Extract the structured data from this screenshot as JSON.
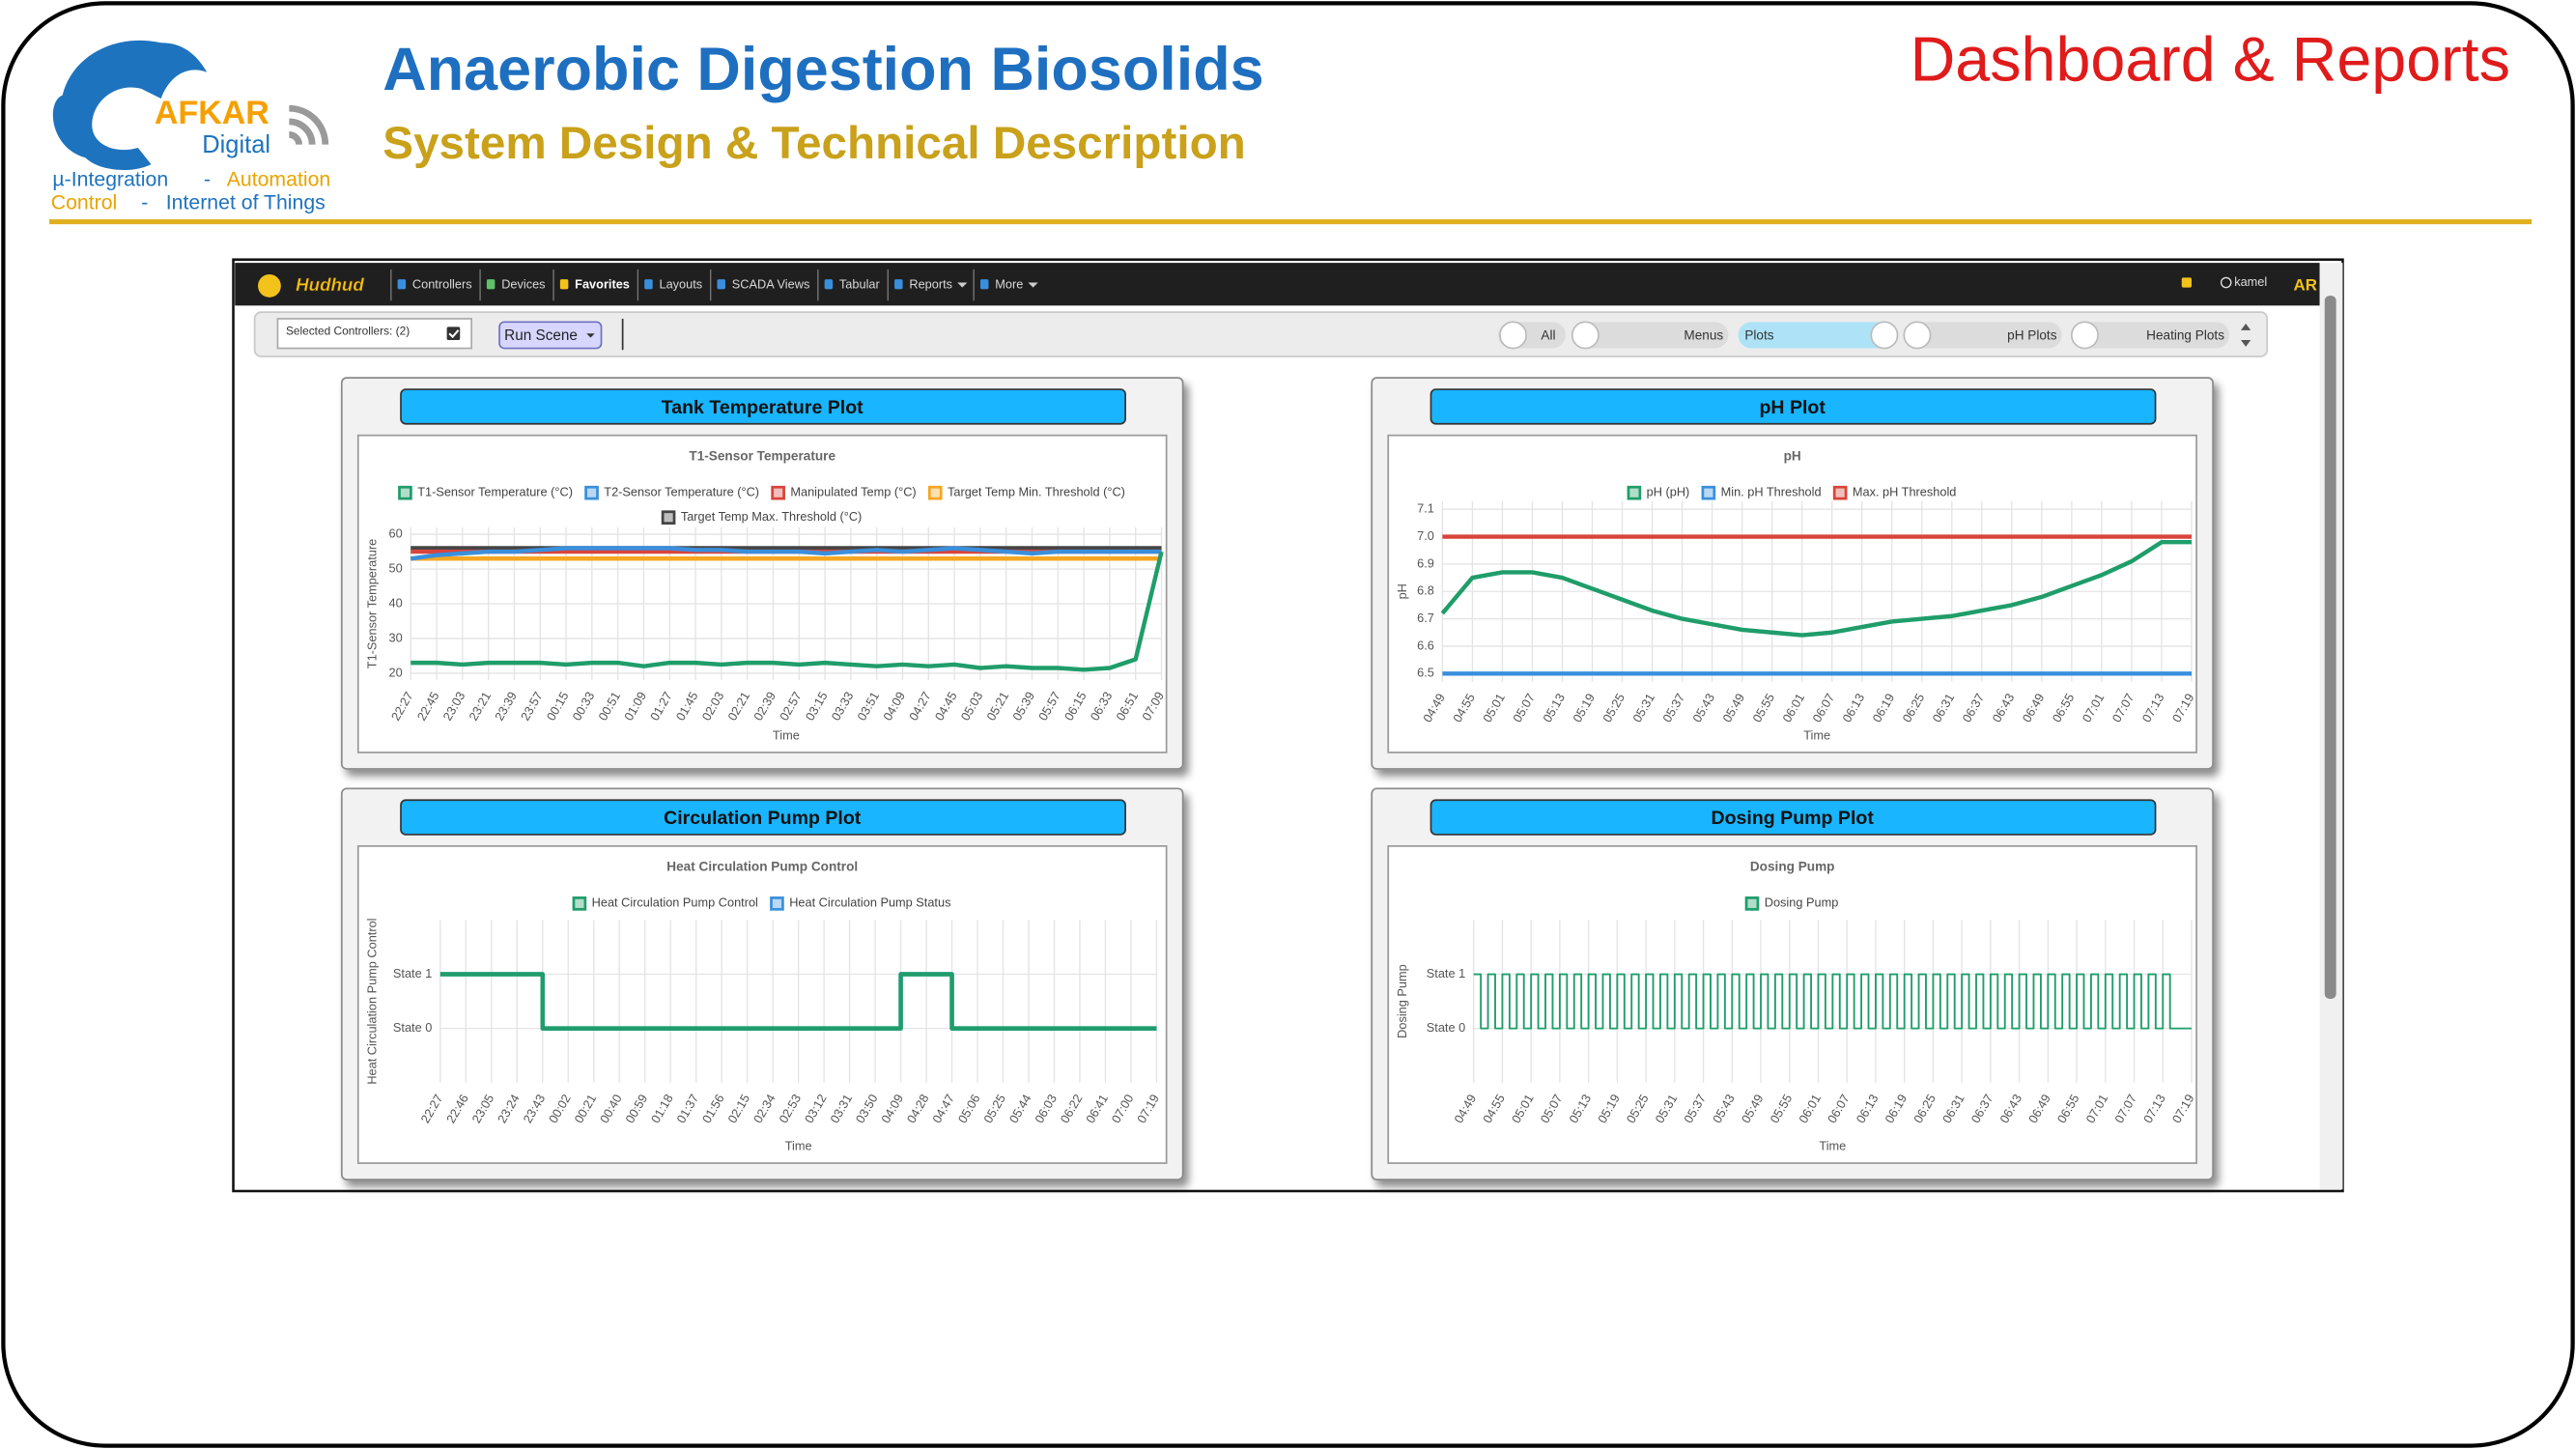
{
  "header": {
    "logo": {
      "name": "AFKAR",
      "sub": "Digital",
      "line1": [
        "µ-Integration",
        "-",
        "Automation"
      ],
      "line2": [
        "Control",
        "-",
        "Internet of Things"
      ]
    },
    "title": "Anaerobic Digestion Biosolids",
    "subtitle": "System Design & Technical Description",
    "section": "Dashboard & Reports"
  },
  "navbar": {
    "brand": "Hudhud",
    "items": [
      "Controllers",
      "Devices",
      "Favorites",
      "Layouts",
      "SCADA Views",
      "Tabular",
      "Reports",
      "More"
    ],
    "user": "kamel",
    "lang": "AR"
  },
  "toolbar": {
    "selected": "Selected Controllers: (2)",
    "button": "Run Scene",
    "toggles": [
      "All",
      "Menus",
      "Plots",
      "pH Plots",
      "Heating Plots"
    ]
  },
  "panels": [
    "Tank Temperature Plot",
    "pH Plot",
    "Circulation Pump Plot",
    "Dosing Pump Plot"
  ],
  "chart_data": [
    {
      "type": "line",
      "title": "T1-Sensor Temperature",
      "y_label": "T1-Sensor Temperature",
      "x_label": "Time",
      "legend": "top",
      "grid": true,
      "categories": [
        "22:27",
        "22:45",
        "23:03",
        "23:21",
        "23:39",
        "23:57",
        "00:15",
        "00:33",
        "00:51",
        "01:09",
        "01:27",
        "01:45",
        "02:03",
        "02:21",
        "02:39",
        "02:57",
        "03:15",
        "03:33",
        "03:51",
        "04:09",
        "04:27",
        "04:45",
        "05:03",
        "05:21",
        "05:39",
        "05:57",
        "06:15",
        "06:33",
        "06:51",
        "07:09"
      ],
      "series": [
        {
          "name": "T1-Sensor Temperature (°C)",
          "color": "#1f9d6a",
          "values": [
            23,
            23,
            22.5,
            23,
            23,
            23,
            22.5,
            23,
            23,
            22,
            23,
            23,
            22.5,
            23,
            23,
            22.5,
            23,
            22.5,
            22,
            22.5,
            22,
            22.5,
            21.5,
            22,
            21.5,
            21.5,
            21,
            21.5,
            24,
            55
          ]
        },
        {
          "name": "T2-Sensor Temperature (°C)",
          "color": "#3a8fdc",
          "values": [
            53,
            54,
            54.5,
            55,
            55,
            55.5,
            56,
            56,
            56,
            56,
            56,
            55.5,
            55.5,
            55,
            55,
            55,
            54.5,
            55,
            55.5,
            55,
            55.5,
            56,
            55.5,
            55,
            54.5,
            55,
            55,
            55,
            55,
            55
          ]
        },
        {
          "name": "Manipulated Temp (°C)",
          "color": "#d9443a",
          "values": [
            55,
            55,
            55,
            55,
            55,
            55,
            55,
            55,
            55,
            55,
            55,
            55,
            55,
            55,
            55,
            55,
            55,
            55,
            55,
            55,
            55,
            55,
            55,
            55,
            55,
            55,
            55,
            55,
            55,
            55
          ]
        },
        {
          "name": "Target Temp Min. Threshold (°C)",
          "color": "#f5a623",
          "values": [
            53,
            53,
            53,
            53,
            53,
            53,
            53,
            53,
            53,
            53,
            53,
            53,
            53,
            53,
            53,
            53,
            53,
            53,
            53,
            53,
            53,
            53,
            53,
            53,
            53,
            53,
            53,
            53,
            53,
            53
          ]
        },
        {
          "name": "Target Temp Max. Threshold (°C)",
          "color": "#444444",
          "values": [
            56,
            56,
            56,
            56,
            56,
            56,
            56,
            56,
            56,
            56,
            56,
            56,
            56,
            56,
            56,
            56,
            56,
            56,
            56,
            56,
            56,
            56,
            56,
            56,
            56,
            56,
            56,
            56,
            56,
            56
          ]
        }
      ],
      "ylim": [
        18,
        62
      ],
      "yticks": [
        20,
        30,
        40,
        50,
        60
      ]
    },
    {
      "type": "line",
      "title": "pH",
      "y_label": "pH",
      "x_label": "Time",
      "legend": "top",
      "grid": true,
      "categories": [
        "04:49",
        "04:55",
        "05:01",
        "05:07",
        "05:13",
        "05:19",
        "05:25",
        "05:31",
        "05:37",
        "05:43",
        "05:49",
        "05:55",
        "06:01",
        "06:07",
        "06:13",
        "06:19",
        "06:25",
        "06:31",
        "06:37",
        "06:43",
        "06:49",
        "06:55",
        "07:01",
        "07:07",
        "07:13",
        "07:19"
      ],
      "series": [
        {
          "name": "pH (pH)",
          "color": "#1f9d6a",
          "values": [
            6.72,
            6.85,
            6.87,
            6.87,
            6.85,
            6.81,
            6.77,
            6.73,
            6.7,
            6.68,
            6.66,
            6.65,
            6.64,
            6.65,
            6.67,
            6.69,
            6.7,
            6.71,
            6.73,
            6.75,
            6.78,
            6.82,
            6.86,
            6.91,
            6.98,
            6.98
          ]
        },
        {
          "name": "Min. pH Threshold",
          "color": "#3a8fdc",
          "values": [
            6.5,
            6.5,
            6.5,
            6.5,
            6.5,
            6.5,
            6.5,
            6.5,
            6.5,
            6.5,
            6.5,
            6.5,
            6.5,
            6.5,
            6.5,
            6.5,
            6.5,
            6.5,
            6.5,
            6.5,
            6.5,
            6.5,
            6.5,
            6.5,
            6.5,
            6.5
          ]
        },
        {
          "name": "Max. pH Threshold",
          "color": "#d9443a",
          "values": [
            7,
            7,
            7,
            7,
            7,
            7,
            7,
            7,
            7,
            7,
            7,
            7,
            7,
            7,
            7,
            7,
            7,
            7,
            7,
            7,
            7,
            7,
            7,
            7,
            7,
            7
          ]
        }
      ],
      "ylim": [
        6.47,
        7.13
      ],
      "yticks": [
        6.5,
        6.6,
        6.7,
        6.8,
        6.9,
        {
          "value": 7,
          "label": "7.0"
        },
        7.1
      ]
    },
    {
      "type": "line",
      "title": "Heat Circulation Pump Control",
      "y_label": "Heat Circulation Pump Control",
      "x_label": "Time",
      "legend": "top",
      "grid": true,
      "step": true,
      "categories": [
        "22:27",
        "22:46",
        "23:05",
        "23:24",
        "23:43",
        "00:02",
        "00:21",
        "00:40",
        "00:59",
        "01:18",
        "01:37",
        "01:56",
        "02:15",
        "02:34",
        "02:53",
        "03:12",
        "03:31",
        "03:50",
        "04:09",
        "04:28",
        "04:47",
        "05:06",
        "05:25",
        "05:44",
        "06:03",
        "06:22",
        "06:41",
        "07:00",
        "07:19"
      ],
      "series": [
        {
          "name": "Heat Circulation Pump Control",
          "color": "#1f9d6a",
          "values": [
            1,
            1,
            1,
            1,
            0,
            0,
            0,
            0,
            0,
            0,
            0,
            0,
            0,
            0,
            0,
            0,
            0,
            0,
            1,
            1,
            0,
            0,
            0,
            0,
            0,
            0,
            0,
            0,
            0
          ]
        },
        {
          "name": "Heat Circulation Pump Status",
          "color": "#3a8fdc",
          "values": [
            1,
            1,
            1,
            1,
            0,
            0,
            0,
            0,
            0,
            0,
            0,
            0,
            0,
            0,
            0,
            0,
            0,
            0,
            1,
            1,
            0,
            0,
            0,
            0,
            0,
            0,
            0,
            0,
            0
          ]
        }
      ],
      "ylim": [
        -1,
        2
      ],
      "yticks": [
        {
          "value": 0,
          "label": "State 0"
        },
        {
          "value": 1,
          "label": "State 1"
        }
      ]
    },
    {
      "type": "line",
      "title": "Dosing Pump",
      "y_label": "Dosing Pump",
      "x_label": "Time",
      "legend": "top",
      "grid": true,
      "step": true,
      "categories": [
        "04:49",
        null,
        null,
        null,
        "04:55",
        null,
        null,
        null,
        "05:01",
        null,
        null,
        null,
        "05:07",
        null,
        null,
        null,
        "05:13",
        null,
        null,
        null,
        "05:19",
        null,
        null,
        null,
        "05:25",
        null,
        null,
        null,
        "05:31",
        null,
        null,
        null,
        "05:37",
        null,
        null,
        null,
        "05:43",
        null,
        null,
        null,
        "05:49",
        null,
        null,
        null,
        "05:55",
        null,
        null,
        null,
        "06:01",
        null,
        null,
        null,
        "06:07",
        null,
        null,
        null,
        "06:13",
        null,
        null,
        null,
        "06:19",
        null,
        null,
        null,
        "06:25",
        null,
        null,
        null,
        "06:31",
        null,
        null,
        null,
        "06:37",
        null,
        null,
        null,
        "06:43",
        null,
        null,
        null,
        "06:49",
        null,
        null,
        null,
        "06:55",
        null,
        null,
        null,
        "07:01",
        null,
        null,
        null,
        "07:07",
        null,
        null,
        null,
        "07:13",
        null,
        null,
        null,
        "07:19"
      ],
      "series": [
        {
          "name": "Dosing Pump",
          "color": "#1f9d6a",
          "values": [
            1,
            0,
            1,
            0,
            1,
            0,
            1,
            0,
            1,
            0,
            1,
            0,
            1,
            0,
            1,
            0,
            1,
            0,
            1,
            0,
            1,
            0,
            1,
            0,
            1,
            0,
            1,
            0,
            1,
            0,
            1,
            0,
            1,
            0,
            1,
            0,
            1,
            0,
            1,
            0,
            1,
            0,
            1,
            0,
            1,
            0,
            1,
            0,
            1,
            0,
            1,
            0,
            1,
            0,
            1,
            0,
            1,
            0,
            1,
            0,
            1,
            0,
            1,
            0,
            1,
            0,
            1,
            0,
            1,
            0,
            1,
            0,
            1,
            0,
            1,
            0,
            1,
            0,
            1,
            0,
            1,
            0,
            1,
            0,
            1,
            0,
            1,
            0,
            1,
            0,
            1,
            0,
            1,
            0,
            1,
            0,
            1,
            0,
            0,
            0,
            0
          ]
        }
      ],
      "ylim": [
        -1,
        2
      ],
      "yticks": [
        {
          "value": 0,
          "label": "State 0"
        },
        {
          "value": 1,
          "label": "State 1"
        }
      ]
    }
  ]
}
